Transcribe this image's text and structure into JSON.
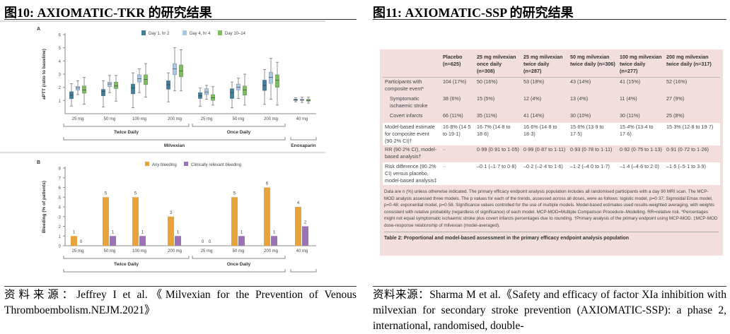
{
  "left": {
    "title": "图10:  AXIOMATIC-TKR 的研究结果",
    "source": "资料来源：Jeffrey I et al.《Milvexian for the Prevention of Venous Thromboembolism.NEJM.2021》"
  },
  "right": {
    "title": "图11:  AXIOMATIC-SSP 的研究结果",
    "source": "资料来源：Sharma M et al.《Safety and efficacy of factor XIa inhibition with milvexian for secondary stroke prevention (AXIOMATIC-SSP): a phase 2, international, randomised, double-"
  },
  "chart_data": [
    {
      "type": "box",
      "panel": "A",
      "ylabel": "aPTT (ratio to baseline)",
      "ylim": [
        0,
        6
      ],
      "yticks": [
        1,
        2,
        3,
        4,
        5,
        6
      ],
      "categories": [
        "25 mg",
        "50 mg",
        "100 mg",
        "200 mg",
        "25 mg",
        "50 mg",
        "200 mg",
        "40 mg"
      ],
      "groups": [
        {
          "label": "Twice Daily",
          "range": [
            0,
            3
          ]
        },
        {
          "label": "Once Daily",
          "range": [
            4,
            6
          ]
        }
      ],
      "supergroups": [
        {
          "label": "Milvexian",
          "range": [
            0,
            6
          ]
        },
        {
          "label": "Enoxaparin",
          "range": [
            7,
            7
          ]
        }
      ],
      "colors": [
        "#3f7f99",
        "#a9c8e4",
        "#7cbf5a"
      ],
      "series": [
        {
          "name": "Day 1, hr 2",
          "boxes": [
            [
              0.58,
              1.13,
              1.4,
              1.67,
              2.27
            ],
            [
              0.5,
              1.35,
              1.7,
              1.85,
              2.5
            ],
            [
              0.45,
              1.5,
              1.95,
              2.25,
              3.1
            ],
            [
              0.9,
              1.85,
              2.2,
              2.5,
              3.1
            ],
            [
              0.55,
              1.15,
              1.35,
              1.6,
              1.95
            ],
            [
              0.45,
              1.15,
              1.6,
              1.9,
              2.4
            ],
            [
              0.7,
              1.75,
              2.15,
              2.55,
              3.35
            ],
            [
              0.9,
              1.0,
              1.05,
              1.1,
              1.2
            ]
          ]
        },
        {
          "name": "Day 4, hr 4",
          "boxes": [
            [
              1.45,
              1.78,
              1.95,
              2.08,
              2.5
            ],
            [
              1.6,
              2.05,
              2.25,
              2.4,
              2.9
            ],
            [
              1.6,
              2.4,
              2.65,
              2.95,
              3.4
            ],
            [
              1.75,
              2.95,
              3.4,
              3.8,
              5.0
            ],
            [
              1.1,
              1.45,
              1.65,
              1.9,
              2.15
            ],
            [
              1.15,
              1.8,
              2.0,
              2.25,
              2.7
            ],
            [
              1.1,
              2.3,
              2.75,
              3.15,
              4.2
            ],
            [
              0.85,
              1.0,
              1.05,
              1.1,
              1.25
            ]
          ]
        },
        {
          "name": "Day 10–14",
          "boxes": [
            [
              0.72,
              1.55,
              1.8,
              2.1,
              2.75
            ],
            [
              0.95,
              1.9,
              2.1,
              2.4,
              2.9
            ],
            [
              1.25,
              2.2,
              2.6,
              2.95,
              3.8
            ],
            [
              1.75,
              2.8,
              3.25,
              3.7,
              4.85
            ],
            [
              0.65,
              1.0,
              1.2,
              1.45,
              2.05
            ],
            [
              0.65,
              1.4,
              1.8,
              2.1,
              3.0
            ],
            [
              0.65,
              2.0,
              2.55,
              2.95,
              3.9
            ],
            [
              0.8,
              0.95,
              1.0,
              1.1,
              1.25
            ]
          ]
        }
      ]
    },
    {
      "type": "bar",
      "panel": "B",
      "ylabel": "Bleeding (% of patients)",
      "ylim": [
        0,
        8
      ],
      "yticks": [
        0,
        1,
        2,
        3,
        4,
        5,
        6,
        7,
        8
      ],
      "categories": [
        "25 mg",
        "50 mg",
        "100 mg",
        "200 mg",
        "25 mg",
        "50 mg",
        "200 mg",
        "40 mg"
      ],
      "groups": [
        {
          "label": "Twice Daily",
          "range": [
            0,
            3
          ]
        },
        {
          "label": "Once Daily",
          "range": [
            4,
            6
          ]
        }
      ],
      "supergroups": [
        {
          "label": "Milvexian",
          "range": [
            0,
            6
          ]
        },
        {
          "label": "Enoxaparin",
          "range": [
            7,
            7
          ]
        }
      ],
      "series": [
        {
          "name": "Any bleeding",
          "color": "#e8a23a",
          "values": [
            1,
            5,
            5,
            3,
            0,
            5,
            6,
            4
          ]
        },
        {
          "name": "Clinically relevant bleeding",
          "color": "#9a72b5",
          "values": [
            0,
            1,
            1,
            1,
            0,
            1,
            1,
            2
          ]
        }
      ]
    }
  ],
  "table": {
    "headers": [
      "",
      "Placebo (n=625)",
      "25 mg milvexian once daily (n=308)",
      "25 mg milvexian twice daily (n=287)",
      "50 mg milvexian twice daily (n=306)",
      "100 mg milvexian twice daily (n=277)",
      "200 mg milvexian twice daily (n=317)"
    ],
    "rows": [
      {
        "white": false,
        "cells": [
          "Participants with composite event*",
          "104 (17%)",
          "50 (16%)",
          "53 (18%)",
          "43 (14%)",
          "41 (15%)",
          "52 (16%)"
        ]
      },
      {
        "white": false,
        "indent": true,
        "cells": [
          "Symptomatic ischaemic stroke",
          "38 (6%)",
          "15 (5%)",
          "12 (4%)",
          "13 (4%)",
          "11 (4%)",
          "27 (9%)"
        ]
      },
      {
        "white": false,
        "indent": true,
        "cells": [
          "Covert infarcts",
          "66 (11%)",
          "35 (11%)",
          "41 (14%)",
          "30 (10%)",
          "30 (11%)",
          "25 (8%)"
        ]
      },
      {
        "white": true,
        "cells": [
          "Model-based estimate for composite event (90·2% CI)†",
          "16·8% (14·5 to 19·1)",
          "16·7% (14·8 to 18·6)",
          "16·6% (14·8 to 18·3)",
          "15·6% (13·9 to 17·5)",
          "15·4% (13·4 to 17·6)",
          "15·3% (12·8 to 19·7)"
        ]
      },
      {
        "white": false,
        "cells": [
          "RR (90·2% CI), model-based analysis†",
          "··",
          "0·99 (0·91 to 1·05)",
          "0·99 (0·87 to 1·11)",
          "0·93 (0·78 to 1·11)",
          "0·92 (0·75 to 1·13)",
          "0·91 (0·72 to 1·26)"
        ]
      },
      {
        "white": true,
        "cells": [
          "Risk difference (90·2% CI) versus placebo, model-based analysis‡",
          "··",
          "–0·1 (–1·7 to 0·8)",
          "–0·2 (–2·4 to 1·6)",
          "–1·2 (–4·0 to 1·7)",
          "–1·4 (–4·6 to 2·0)",
          "–1·5 (–5·1 to 3·9)"
        ]
      }
    ],
    "note": "Data are n (%) unless otherwise indicated. The primary efficacy endpoint analysis population includes all randomised participants with a day 90 MRI scan. The MCP-MOD analysis assessed three models. The p values for each of the trends, assessed across all doses, were as follows: logistic model, p=0·37; Sigmoidal Emax model, p=0·48; exponential model, p=0·58. Significance values controlled for the use of multiple models. Model-based estimates used results-weighted averaging, with weights consistent with relative probability (regardless of significance) of each model. MCP-MOD=Multiple Comparison Procedure–Modelling. RR=relative risk. *Percentages might not equal symptomatic ischaemic stroke plus covert infarcts percentages due to rounding. †Primary analysis of the primary endpoint using MCP-MOD. ‡MCP-MOD dose-response relationship of milvexian (model-averaged).",
    "caption": "Table 2: Proportional and model-based assessment in the primary efficacy endpoint analysis population"
  }
}
